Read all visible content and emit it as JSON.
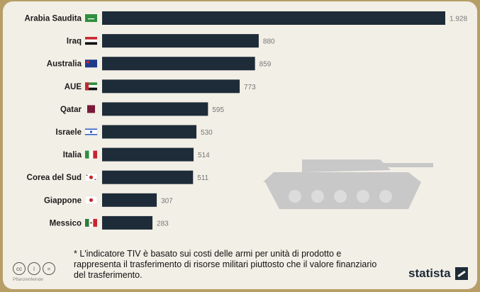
{
  "chart_data": {
    "type": "bar",
    "orientation": "horizontal",
    "categories": [
      "Arabia Saudita",
      "Iraq",
      "Australia",
      "AUE",
      "Qatar",
      "Israele",
      "Italia",
      "Corea del Sud",
      "Giappone",
      "Messico"
    ],
    "values": [
      1928,
      880,
      859,
      773,
      595,
      530,
      514,
      511,
      307,
      283
    ],
    "value_labels": [
      "1.928",
      "880",
      "859",
      "773",
      "595",
      "530",
      "514",
      "511",
      "307",
      "283"
    ],
    "flags": [
      "saudi-flag",
      "iraq-flag",
      "australia-flag",
      "uae-flag",
      "qatar-flag",
      "israel-flag",
      "italy-flag",
      "south-korea-flag",
      "japan-flag",
      "mexico-flag"
    ],
    "bar_color": "#1e2b38",
    "xlim": [
      0,
      1928
    ]
  },
  "footnote": "* L'indicatore TIV è basato sui costi delle armi per unità di prodotto e rappresenta il trasferimento di risorse militari piuttosto che il valore finanziario del trasferimento.",
  "brand": {
    "name": "statista"
  },
  "license": {
    "icons": [
      "cc-icon",
      "by-icon",
      "nd-icon"
    ],
    "text": "Pflanzenfeinde"
  },
  "colors": {
    "background": "#f2efe6",
    "border": "#b79d66",
    "bar": "#1e2b38",
    "tank": "#c8c8c8"
  }
}
